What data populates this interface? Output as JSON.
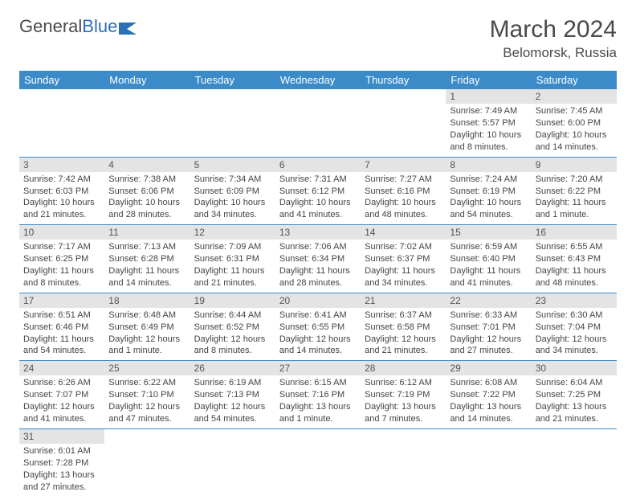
{
  "logo": {
    "text1": "General",
    "text2": "Blue"
  },
  "title": "March 2024",
  "location": "Belomorsk, Russia",
  "colors": {
    "header_bg": "#3b8bc9",
    "header_text": "#ffffff",
    "daynum_bg": "#e4e4e4",
    "row_border": "#3b8bc9",
    "logo_blue": "#2c6fb5",
    "text": "#4a4a4a"
  },
  "weekdays": [
    "Sunday",
    "Monday",
    "Tuesday",
    "Wednesday",
    "Thursday",
    "Friday",
    "Saturday"
  ],
  "rows": [
    [
      {
        "n": "",
        "sr": "",
        "ss": "",
        "dl": ""
      },
      {
        "n": "",
        "sr": "",
        "ss": "",
        "dl": ""
      },
      {
        "n": "",
        "sr": "",
        "ss": "",
        "dl": ""
      },
      {
        "n": "",
        "sr": "",
        "ss": "",
        "dl": ""
      },
      {
        "n": "",
        "sr": "",
        "ss": "",
        "dl": ""
      },
      {
        "n": "1",
        "sr": "Sunrise: 7:49 AM",
        "ss": "Sunset: 5:57 PM",
        "dl": "Daylight: 10 hours and 8 minutes."
      },
      {
        "n": "2",
        "sr": "Sunrise: 7:45 AM",
        "ss": "Sunset: 6:00 PM",
        "dl": "Daylight: 10 hours and 14 minutes."
      }
    ],
    [
      {
        "n": "3",
        "sr": "Sunrise: 7:42 AM",
        "ss": "Sunset: 6:03 PM",
        "dl": "Daylight: 10 hours and 21 minutes."
      },
      {
        "n": "4",
        "sr": "Sunrise: 7:38 AM",
        "ss": "Sunset: 6:06 PM",
        "dl": "Daylight: 10 hours and 28 minutes."
      },
      {
        "n": "5",
        "sr": "Sunrise: 7:34 AM",
        "ss": "Sunset: 6:09 PM",
        "dl": "Daylight: 10 hours and 34 minutes."
      },
      {
        "n": "6",
        "sr": "Sunrise: 7:31 AM",
        "ss": "Sunset: 6:12 PM",
        "dl": "Daylight: 10 hours and 41 minutes."
      },
      {
        "n": "7",
        "sr": "Sunrise: 7:27 AM",
        "ss": "Sunset: 6:16 PM",
        "dl": "Daylight: 10 hours and 48 minutes."
      },
      {
        "n": "8",
        "sr": "Sunrise: 7:24 AM",
        "ss": "Sunset: 6:19 PM",
        "dl": "Daylight: 10 hours and 54 minutes."
      },
      {
        "n": "9",
        "sr": "Sunrise: 7:20 AM",
        "ss": "Sunset: 6:22 PM",
        "dl": "Daylight: 11 hours and 1 minute."
      }
    ],
    [
      {
        "n": "10",
        "sr": "Sunrise: 7:17 AM",
        "ss": "Sunset: 6:25 PM",
        "dl": "Daylight: 11 hours and 8 minutes."
      },
      {
        "n": "11",
        "sr": "Sunrise: 7:13 AM",
        "ss": "Sunset: 6:28 PM",
        "dl": "Daylight: 11 hours and 14 minutes."
      },
      {
        "n": "12",
        "sr": "Sunrise: 7:09 AM",
        "ss": "Sunset: 6:31 PM",
        "dl": "Daylight: 11 hours and 21 minutes."
      },
      {
        "n": "13",
        "sr": "Sunrise: 7:06 AM",
        "ss": "Sunset: 6:34 PM",
        "dl": "Daylight: 11 hours and 28 minutes."
      },
      {
        "n": "14",
        "sr": "Sunrise: 7:02 AM",
        "ss": "Sunset: 6:37 PM",
        "dl": "Daylight: 11 hours and 34 minutes."
      },
      {
        "n": "15",
        "sr": "Sunrise: 6:59 AM",
        "ss": "Sunset: 6:40 PM",
        "dl": "Daylight: 11 hours and 41 minutes."
      },
      {
        "n": "16",
        "sr": "Sunrise: 6:55 AM",
        "ss": "Sunset: 6:43 PM",
        "dl": "Daylight: 11 hours and 48 minutes."
      }
    ],
    [
      {
        "n": "17",
        "sr": "Sunrise: 6:51 AM",
        "ss": "Sunset: 6:46 PM",
        "dl": "Daylight: 11 hours and 54 minutes."
      },
      {
        "n": "18",
        "sr": "Sunrise: 6:48 AM",
        "ss": "Sunset: 6:49 PM",
        "dl": "Daylight: 12 hours and 1 minute."
      },
      {
        "n": "19",
        "sr": "Sunrise: 6:44 AM",
        "ss": "Sunset: 6:52 PM",
        "dl": "Daylight: 12 hours and 8 minutes."
      },
      {
        "n": "20",
        "sr": "Sunrise: 6:41 AM",
        "ss": "Sunset: 6:55 PM",
        "dl": "Daylight: 12 hours and 14 minutes."
      },
      {
        "n": "21",
        "sr": "Sunrise: 6:37 AM",
        "ss": "Sunset: 6:58 PM",
        "dl": "Daylight: 12 hours and 21 minutes."
      },
      {
        "n": "22",
        "sr": "Sunrise: 6:33 AM",
        "ss": "Sunset: 7:01 PM",
        "dl": "Daylight: 12 hours and 27 minutes."
      },
      {
        "n": "23",
        "sr": "Sunrise: 6:30 AM",
        "ss": "Sunset: 7:04 PM",
        "dl": "Daylight: 12 hours and 34 minutes."
      }
    ],
    [
      {
        "n": "24",
        "sr": "Sunrise: 6:26 AM",
        "ss": "Sunset: 7:07 PM",
        "dl": "Daylight: 12 hours and 41 minutes."
      },
      {
        "n": "25",
        "sr": "Sunrise: 6:22 AM",
        "ss": "Sunset: 7:10 PM",
        "dl": "Daylight: 12 hours and 47 minutes."
      },
      {
        "n": "26",
        "sr": "Sunrise: 6:19 AM",
        "ss": "Sunset: 7:13 PM",
        "dl": "Daylight: 12 hours and 54 minutes."
      },
      {
        "n": "27",
        "sr": "Sunrise: 6:15 AM",
        "ss": "Sunset: 7:16 PM",
        "dl": "Daylight: 13 hours and 1 minute."
      },
      {
        "n": "28",
        "sr": "Sunrise: 6:12 AM",
        "ss": "Sunset: 7:19 PM",
        "dl": "Daylight: 13 hours and 7 minutes."
      },
      {
        "n": "29",
        "sr": "Sunrise: 6:08 AM",
        "ss": "Sunset: 7:22 PM",
        "dl": "Daylight: 13 hours and 14 minutes."
      },
      {
        "n": "30",
        "sr": "Sunrise: 6:04 AM",
        "ss": "Sunset: 7:25 PM",
        "dl": "Daylight: 13 hours and 21 minutes."
      }
    ],
    [
      {
        "n": "31",
        "sr": "Sunrise: 6:01 AM",
        "ss": "Sunset: 7:28 PM",
        "dl": "Daylight: 13 hours and 27 minutes."
      },
      {
        "n": "",
        "sr": "",
        "ss": "",
        "dl": ""
      },
      {
        "n": "",
        "sr": "",
        "ss": "",
        "dl": ""
      },
      {
        "n": "",
        "sr": "",
        "ss": "",
        "dl": ""
      },
      {
        "n": "",
        "sr": "",
        "ss": "",
        "dl": ""
      },
      {
        "n": "",
        "sr": "",
        "ss": "",
        "dl": ""
      },
      {
        "n": "",
        "sr": "",
        "ss": "",
        "dl": ""
      }
    ]
  ]
}
